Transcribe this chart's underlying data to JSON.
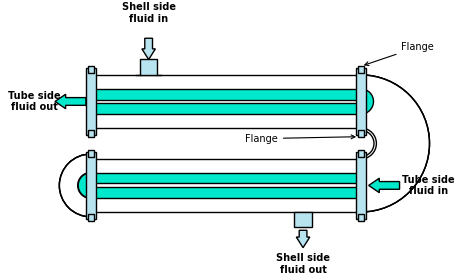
{
  "bg_color": "#ffffff",
  "tube_fill": "#00e8cc",
  "shell_wall": "#ffffff",
  "stroke": "#000000",
  "flange_fill": "#b8e4f0",
  "arrow_shell_fill": "#b8e4f0",
  "arrow_tube_fill": "#00e8cc",
  "text_color": "#000000",
  "labels": {
    "shell_in": "Shell side\nfluid in",
    "shell_out": "Shell side\nfluid out",
    "tube_out": "Tube side\nfluid out",
    "tube_in": "Tube side\nfluid in",
    "flange_top": "Flange",
    "flange_mid": "Flange"
  },
  "figsize": [
    4.74,
    2.79
  ],
  "dpi": 100
}
